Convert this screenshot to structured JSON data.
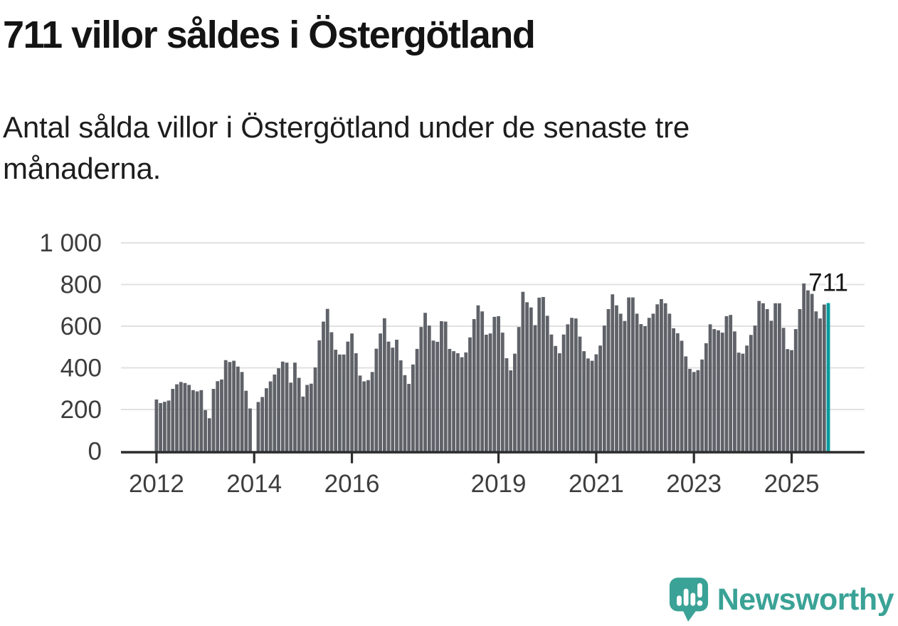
{
  "header": {
    "title": "711 villor såldes i Östergötland",
    "subtitle": "Antal sålda villor i Östergötland under de senaste tre månaderna."
  },
  "chart_data": {
    "type": "bar",
    "title": "711 villor såldes i Östergötland",
    "subtitle": "Antal sålda villor i Östergötland under de senaste tre månaderna.",
    "x_unit": "month",
    "x_start": "2012-01",
    "x_end": "2025-10",
    "x_tick_years": [
      2012,
      2014,
      2016,
      2019,
      2021,
      2023,
      2025
    ],
    "x_tick_labels": [
      "2012",
      "2014",
      "2016",
      "2019",
      "2021",
      "2023",
      "2025"
    ],
    "y_tick_values": [
      0,
      200,
      400,
      600,
      800,
      1000
    ],
    "y_tick_labels": [
      "0",
      "200",
      "400",
      "600",
      "800",
      "1 000"
    ],
    "ylim": [
      0,
      1000
    ],
    "grid": true,
    "legend": "none",
    "values": [
      248,
      231,
      237,
      243,
      299,
      321,
      332,
      327,
      318,
      293,
      287,
      293,
      197,
      158,
      299,
      336,
      344,
      437,
      428,
      434,
      406,
      380,
      290,
      205,
      0,
      236,
      260,
      302,
      335,
      368,
      398,
      430,
      425,
      329,
      425,
      352,
      262,
      318,
      324,
      402,
      532,
      622,
      683,
      571,
      487,
      464,
      464,
      526,
      565,
      470,
      363,
      335,
      341,
      380,
      492,
      565,
      638,
      526,
      497,
      535,
      436,
      365,
      323,
      416,
      491,
      596,
      664,
      603,
      531,
      525,
      624,
      622,
      491,
      480,
      470,
      451,
      474,
      546,
      634,
      700,
      671,
      559,
      565,
      645,
      648,
      569,
      446,
      388,
      468,
      596,
      765,
      715,
      690,
      605,
      737,
      740,
      650,
      560,
      505,
      470,
      560,
      609,
      640,
      637,
      550,
      480,
      445,
      434,
      465,
      507,
      603,
      682,
      753,
      700,
      660,
      625,
      738,
      738,
      660,
      610,
      600,
      640,
      660,
      705,
      730,
      710,
      660,
      590,
      566,
      530,
      455,
      395,
      380,
      389,
      440,
      518,
      609,
      586,
      580,
      569,
      648,
      654,
      575,
      473,
      468,
      507,
      558,
      603,
      721,
      710,
      682,
      626,
      710,
      710,
      592,
      490,
      485,
      586,
      682,
      805,
      772,
      755,
      671,
      637,
      704,
      711
    ],
    "highlight": {
      "index": 165,
      "value": 711,
      "label": "711"
    },
    "colors": {
      "bar": "#5f6268",
      "highlight": "#089c9e",
      "grid": "#e1e1e1",
      "axis": "#2d2d2d",
      "tick_label": "#3d3d3d",
      "annotation": "#141414"
    }
  },
  "footer": {
    "brand": "Newsworthy",
    "brand_color": "#3aa296",
    "logo_icon": "newsworthy-speech-bubble-bar-chart-icon"
  }
}
